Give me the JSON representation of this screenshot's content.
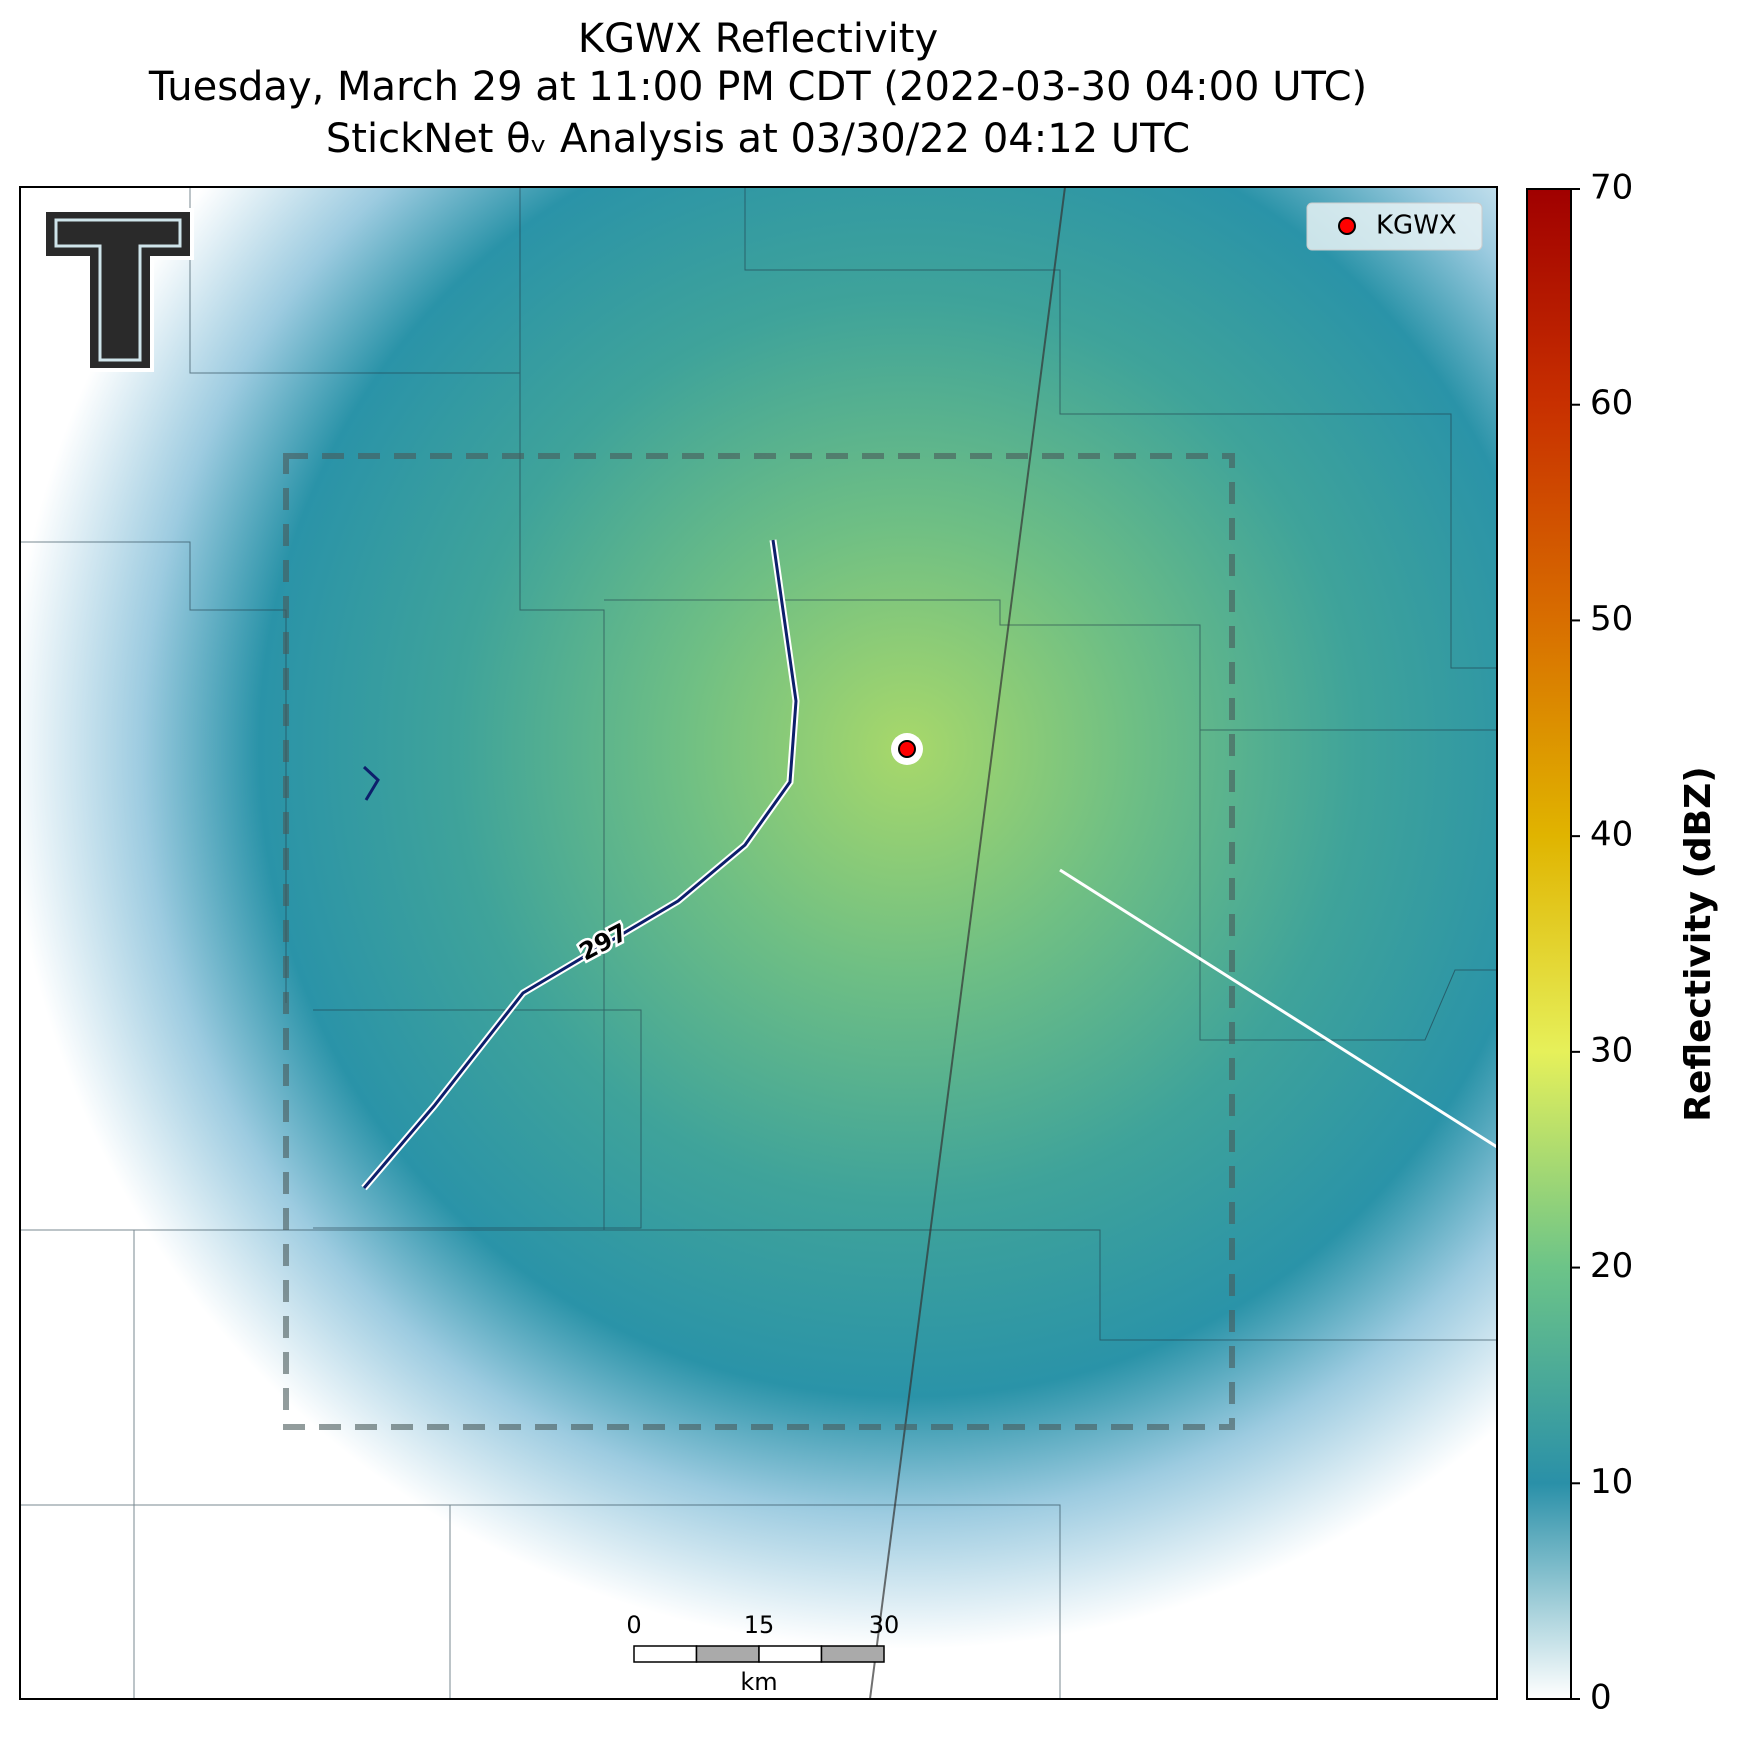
{
  "chart_data": {
    "type": "radar-map",
    "title": "KGWX Reflectivity",
    "subtitle": "Tuesday, March 29 at 11:00 PM CDT (2022-03-30 04:00 UTC)",
    "subtitle2": "StickNet θᵥ Analysis at 03/30/22 04:12 UTC",
    "legend": {
      "label": "KGWX",
      "color": "#ff0000",
      "position": "upper right"
    },
    "contour": {
      "label": "297",
      "color": "#0d1f6b"
    },
    "colorbar": {
      "label": "Reflectivity (dBZ)",
      "ylim": [
        0,
        70
      ],
      "yticks": [
        0,
        10,
        20,
        30,
        40,
        50,
        60,
        70
      ],
      "colors": [
        "#ffffff",
        "#2a90a8",
        "#6cc488",
        "#e6f05a",
        "#e0b400",
        "#d86e00",
        "#c83000",
        "#a00000"
      ]
    },
    "scale_bar": {
      "ticks": [
        0,
        15,
        30
      ],
      "unit": "km"
    }
  }
}
